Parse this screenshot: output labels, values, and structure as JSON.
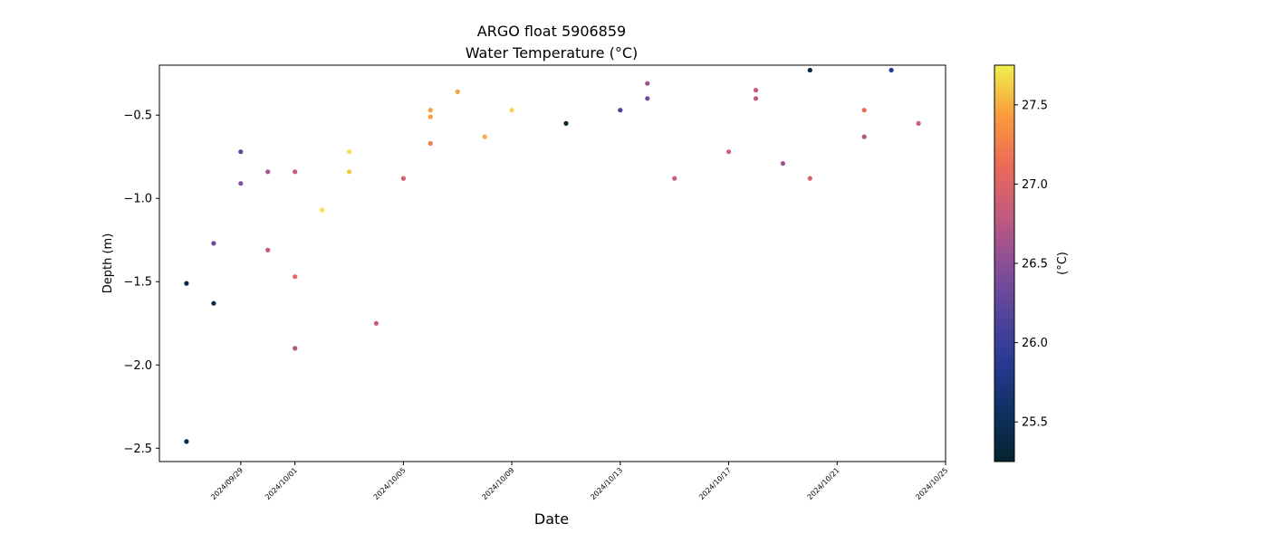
{
  "chart_data": {
    "type": "scatter",
    "title": "ARGO float 5906859",
    "subtitle": "Water Temperature",
    "subtitle_unit_html": "(°C)",
    "xlabel": "Date",
    "ylabel": "Depth (m)",
    "colorbar_label": "(°C)",
    "colormap": "thermal",
    "x_ticks": [
      "2024/09/29",
      "2024/10/01",
      "2024/10/05",
      "2024/10/09",
      "2024/10/13",
      "2024/10/17",
      "2024/10/21",
      "2024/10/25"
    ],
    "y_ticks": [
      "−2.5",
      "−2.0",
      "−1.5",
      "−1.0",
      "−0.5"
    ],
    "y_tick_values": [
      -2.5,
      -2.0,
      -1.5,
      -1.0,
      -0.5
    ],
    "colorbar_ticks": [
      "25.5",
      "26.0",
      "26.5",
      "27.0",
      "27.5"
    ],
    "colorbar_tick_values": [
      25.5,
      26.0,
      26.5,
      27.0,
      27.5
    ],
    "xlim": [
      "2024-09-26",
      "2024-10-25"
    ],
    "ylim": [
      -2.58,
      -0.2
    ],
    "clim": [
      25.25,
      27.75
    ],
    "grid": false,
    "points": [
      {
        "date": "2024-09-27",
        "depth": -1.51,
        "temp": 25.45
      },
      {
        "date": "2024-09-27",
        "depth": -2.46,
        "temp": 25.4
      },
      {
        "date": "2024-09-28",
        "depth": -1.27,
        "temp": 26.35
      },
      {
        "date": "2024-09-28",
        "depth": -1.63,
        "temp": 25.45
      },
      {
        "date": "2024-09-29",
        "depth": -0.72,
        "temp": 26.25
      },
      {
        "date": "2024-09-29",
        "depth": -0.91,
        "temp": 26.45
      },
      {
        "date": "2024-09-30",
        "depth": -0.84,
        "temp": 26.65
      },
      {
        "date": "2024-09-30",
        "depth": -1.31,
        "temp": 26.8
      },
      {
        "date": "2024-10-01",
        "depth": -0.84,
        "temp": 26.85
      },
      {
        "date": "2024-10-01",
        "depth": -1.47,
        "temp": 27.05
      },
      {
        "date": "2024-10-01",
        "depth": -1.9,
        "temp": 26.7
      },
      {
        "date": "2024-10-02",
        "depth": -1.07,
        "temp": 27.7
      },
      {
        "date": "2024-10-03",
        "depth": -0.72,
        "temp": 27.7
      },
      {
        "date": "2024-10-03",
        "depth": -0.84,
        "temp": 27.6
      },
      {
        "date": "2024-10-04",
        "depth": -1.75,
        "temp": 26.85
      },
      {
        "date": "2024-10-05",
        "depth": -0.88,
        "temp": 26.9
      },
      {
        "date": "2024-10-06",
        "depth": -0.47,
        "temp": 27.45
      },
      {
        "date": "2024-10-06",
        "depth": -0.51,
        "temp": 27.45
      },
      {
        "date": "2024-10-06",
        "depth": -0.67,
        "temp": 27.25
      },
      {
        "date": "2024-10-07",
        "depth": -0.36,
        "temp": 27.45
      },
      {
        "date": "2024-10-08",
        "depth": -0.63,
        "temp": 27.5
      },
      {
        "date": "2024-10-09",
        "depth": -0.47,
        "temp": 27.65
      },
      {
        "date": "2024-10-11",
        "depth": -0.55,
        "temp": 25.3
      },
      {
        "date": "2024-10-13",
        "depth": -0.47,
        "temp": 26.1
      },
      {
        "date": "2024-10-14",
        "depth": -0.31,
        "temp": 26.6
      },
      {
        "date": "2024-10-14",
        "depth": -0.4,
        "temp": 26.4
      },
      {
        "date": "2024-10-15",
        "depth": -0.88,
        "temp": 26.85
      },
      {
        "date": "2024-10-17",
        "depth": -0.72,
        "temp": 26.9
      },
      {
        "date": "2024-10-18",
        "depth": -0.35,
        "temp": 26.85
      },
      {
        "date": "2024-10-18",
        "depth": -0.4,
        "temp": 26.8
      },
      {
        "date": "2024-10-19",
        "depth": -0.79,
        "temp": 26.6
      },
      {
        "date": "2024-10-20",
        "depth": -0.23,
        "temp": 25.35
      },
      {
        "date": "2024-10-20",
        "depth": -0.88,
        "temp": 26.95
      },
      {
        "date": "2024-10-22",
        "depth": -0.47,
        "temp": 27.1
      },
      {
        "date": "2024-10-22",
        "depth": -0.63,
        "temp": 26.7
      },
      {
        "date": "2024-10-23",
        "depth": -0.23,
        "temp": 25.85
      },
      {
        "date": "2024-10-24",
        "depth": -0.55,
        "temp": 26.9
      }
    ]
  }
}
